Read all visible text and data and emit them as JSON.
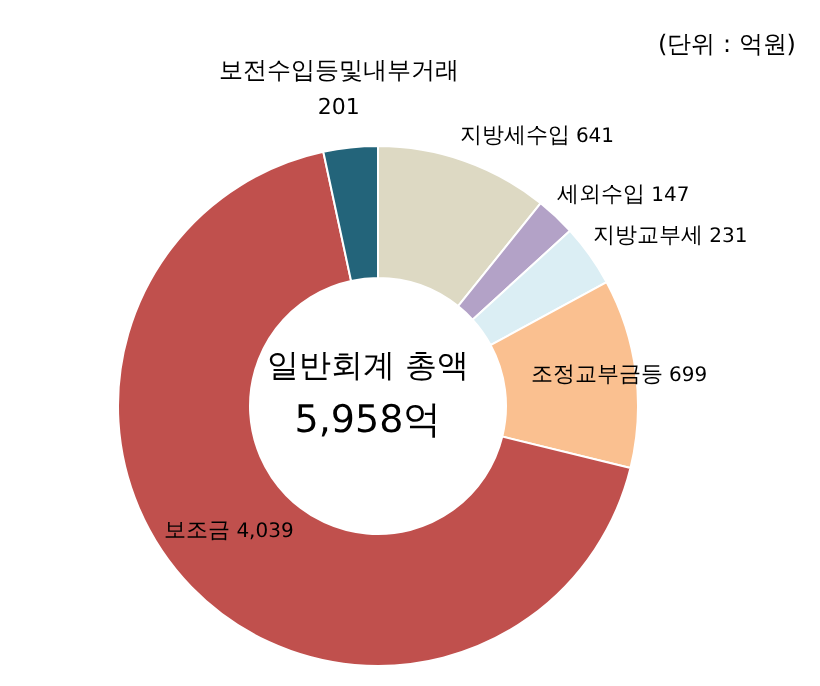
{
  "chart_data": {
    "type": "donut",
    "title": "일반회계 총액",
    "subtitle": "5,958억",
    "annotations": [
      "(단위 : 억원)"
    ],
    "categories": [
      "지방세수입",
      "세외수입",
      "지방교부세",
      "조정교부금등",
      "보조금",
      "보전수입등및내부거래"
    ],
    "values": [
      641,
      147,
      231,
      699,
      4039,
      201
    ],
    "value_labels": [
      "641",
      "147",
      "231",
      "699",
      "4,039",
      "201"
    ],
    "colors": [
      "#ddd9c3",
      "#b3a2c7",
      "#dbeef4",
      "#fac090",
      "#c0504d",
      "#23647a"
    ],
    "legend": false
  }
}
